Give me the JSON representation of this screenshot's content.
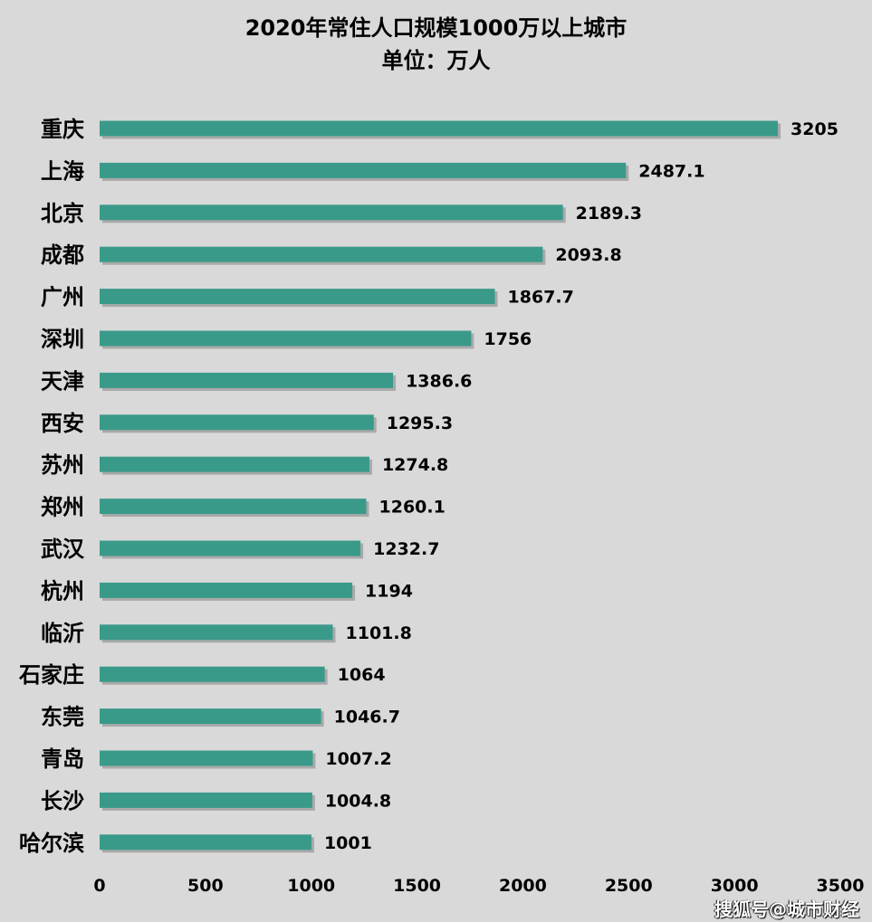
{
  "chart_data": {
    "type": "bar",
    "orientation": "horizontal",
    "title": "2020年常住人口规模1000万以上城市",
    "subtitle": "单位：万人",
    "categories": [
      "重庆",
      "上海",
      "北京",
      "成都",
      "广州",
      "深圳",
      "天津",
      "西安",
      "苏州",
      "郑州",
      "武汉",
      "杭州",
      "临沂",
      "石家庄",
      "东莞",
      "青岛",
      "长沙",
      "哈尔滨"
    ],
    "values": [
      3205,
      2487.1,
      2189.3,
      2093.8,
      1867.7,
      1756,
      1386.6,
      1295.3,
      1274.8,
      1260.1,
      1232.7,
      1194,
      1101.8,
      1064,
      1046.7,
      1007.2,
      1004.8,
      1001
    ],
    "data_labels": [
      "3205",
      "2487.1",
      "2189.3",
      "2093.8",
      "1867.7",
      "1756",
      "1386.6",
      "1295.3",
      "1274.8",
      "1260.1",
      "1232.7",
      "1194",
      "1101.8",
      "1064",
      "1046.7",
      "1007.2",
      "1004.8",
      "1001"
    ],
    "xlim": [
      0,
      3500
    ],
    "x_ticks": [
      "0",
      "500",
      "1000",
      "1500",
      "2000",
      "2500",
      "3000",
      "3500"
    ],
    "xlabel": "",
    "ylabel": "",
    "grid": false,
    "legend": "none",
    "bar_color": "#3a9a8a",
    "background_color": "#d9d9d9"
  },
  "watermark": "搜狐号@城市财经"
}
